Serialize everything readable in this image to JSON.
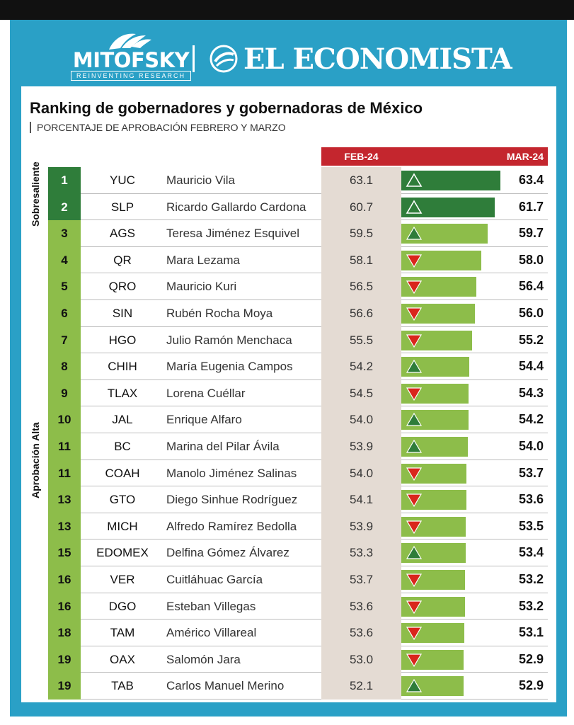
{
  "branding": {
    "mitofsky_name": "MITOFSKY",
    "mitofsky_tagline": "REINVENTING RESEARCH",
    "economista_name": "EL ECONOMISTA"
  },
  "colors": {
    "frame": "#2aa0c6",
    "header_red": "#c4262e",
    "sobresaliente_green": "#2f7d3a",
    "alta_green": "#8dbd4a",
    "arrow_up": "#2f7d3a",
    "arrow_down": "#d9261c",
    "feb_bg": "#e4dbd3"
  },
  "chart_data": {
    "type": "table",
    "title": "Ranking de gobernadores y gobernadoras de México",
    "subtitle": "PORCENTAJE DE APROBACIÓN FEBRERO Y MARZO",
    "columns": {
      "feb": "FEB-24",
      "mar": "MAR-24"
    },
    "groups": [
      {
        "label": "Sobresaliente",
        "from_row": 0,
        "to_row": 1
      },
      {
        "label": "Aprobación Alta",
        "from_row": 2,
        "to_row": 19
      }
    ],
    "bar_scale": [
      50,
      63.4
    ],
    "rows": [
      {
        "rank": "1",
        "state": "YUC",
        "name": "Mauricio Vila",
        "feb": 63.1,
        "mar": 63.4,
        "trend": "up",
        "group": "Sobresaliente"
      },
      {
        "rank": "2",
        "state": "SLP",
        "name": "Ricardo Gallardo Cardona",
        "feb": 60.7,
        "mar": 61.7,
        "trend": "up",
        "group": "Sobresaliente"
      },
      {
        "rank": "3",
        "state": "AGS",
        "name": "Teresa Jiménez Esquivel",
        "feb": 59.5,
        "mar": 59.7,
        "trend": "up",
        "group": "Aprobación Alta"
      },
      {
        "rank": "4",
        "state": "QR",
        "name": "Mara Lezama",
        "feb": 58.1,
        "mar": 58.0,
        "trend": "down",
        "group": "Aprobación Alta"
      },
      {
        "rank": "5",
        "state": "QRO",
        "name": "Mauricio Kuri",
        "feb": 56.5,
        "mar": 56.4,
        "trend": "down",
        "group": "Aprobación Alta"
      },
      {
        "rank": "6",
        "state": "SIN",
        "name": "Rubén Rocha Moya",
        "feb": 56.6,
        "mar": 56.0,
        "trend": "down",
        "group": "Aprobación Alta"
      },
      {
        "rank": "7",
        "state": "HGO",
        "name": "Julio Ramón Menchaca",
        "feb": 55.5,
        "mar": 55.2,
        "trend": "down",
        "group": "Aprobación Alta"
      },
      {
        "rank": "8",
        "state": "CHIH",
        "name": "María Eugenia Campos",
        "feb": 54.2,
        "mar": 54.4,
        "trend": "up",
        "group": "Aprobación Alta"
      },
      {
        "rank": "9",
        "state": "TLAX",
        "name": "Lorena Cuéllar",
        "feb": 54.5,
        "mar": 54.3,
        "trend": "down",
        "group": "Aprobación Alta"
      },
      {
        "rank": "10",
        "state": "JAL",
        "name": "Enrique Alfaro",
        "feb": 54.0,
        "mar": 54.2,
        "trend": "up",
        "group": "Aprobación Alta"
      },
      {
        "rank": "11",
        "state": "BC",
        "name": "Marina del Pilar Ávila",
        "feb": 53.9,
        "mar": 54.0,
        "trend": "up",
        "group": "Aprobación Alta"
      },
      {
        "rank": "11",
        "state": "COAH",
        "name": "Manolo Jiménez Salinas",
        "feb": 54.0,
        "mar": 53.7,
        "trend": "down",
        "group": "Aprobación Alta"
      },
      {
        "rank": "13",
        "state": "GTO",
        "name": "Diego Sinhue Rodríguez",
        "feb": 54.1,
        "mar": 53.6,
        "trend": "down",
        "group": "Aprobación Alta"
      },
      {
        "rank": "13",
        "state": "MICH",
        "name": "Alfredo Ramírez Bedolla",
        "feb": 53.9,
        "mar": 53.5,
        "trend": "down",
        "group": "Aprobación Alta"
      },
      {
        "rank": "15",
        "state": "EDOMEX",
        "name": "Delfina Gómez Álvarez",
        "feb": 53.3,
        "mar": 53.4,
        "trend": "up",
        "group": "Aprobación Alta"
      },
      {
        "rank": "16",
        "state": "VER",
        "name": "Cuitláhuac García",
        "feb": 53.7,
        "mar": 53.2,
        "trend": "down",
        "group": "Aprobación Alta"
      },
      {
        "rank": "16",
        "state": "DGO",
        "name": "Esteban Villegas",
        "feb": 53.6,
        "mar": 53.2,
        "trend": "down",
        "group": "Aprobación Alta"
      },
      {
        "rank": "18",
        "state": "TAM",
        "name": "Américo Villareal",
        "feb": 53.6,
        "mar": 53.1,
        "trend": "down",
        "group": "Aprobación Alta"
      },
      {
        "rank": "19",
        "state": "OAX",
        "name": "Salomón Jara",
        "feb": 53.0,
        "mar": 52.9,
        "trend": "down",
        "group": "Aprobación Alta"
      },
      {
        "rank": "19",
        "state": "TAB",
        "name": "Carlos Manuel Merino",
        "feb": 52.1,
        "mar": 52.9,
        "trend": "up",
        "group": "Aprobación Alta"
      }
    ]
  }
}
